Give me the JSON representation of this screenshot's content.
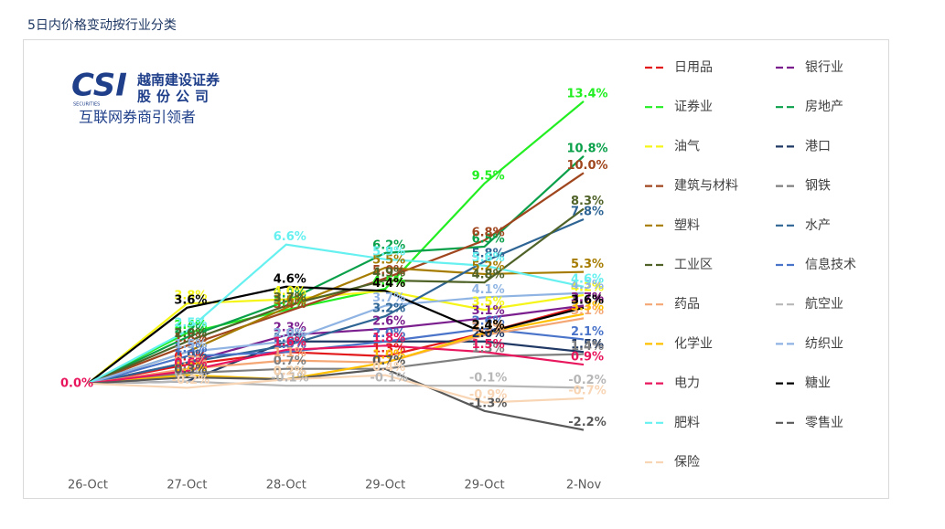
{
  "chart_data": {
    "type": "line",
    "title": "5日内价格变动按行业分类",
    "logo": {
      "mark": "CSI",
      "sub": "SECURITIES",
      "name1": "越南建设证券",
      "name2": "股份公司",
      "slogan": "互联网券商引领者"
    },
    "categories": [
      "26-Oct",
      "27-Oct",
      "28-Oct",
      "29-Oct",
      "29-Oct",
      "2-Nov"
    ],
    "ylim": [
      -3,
      15
    ],
    "series": [
      {
        "name": "日用品",
        "color": "#e31a1c",
        "values": [
          0,
          0.9,
          1.5,
          1.3,
          2.4,
          3.7
        ],
        "value_labels": [
          null,
          "0.9%",
          "1.5%",
          "1.3%",
          "2.4%",
          "3.7%"
        ]
      },
      {
        "name": "银行业",
        "color": "#7b1f8e",
        "values": [
          0,
          1.0,
          2.3,
          2.6,
          3.1,
          3.7
        ],
        "value_labels": [
          null,
          "1.0%",
          "2.3%",
          "2.6%",
          "3.1%",
          "3.7%"
        ]
      },
      {
        "name": "证券业",
        "color": "#22ee22",
        "values": [
          0,
          2.4,
          3.5,
          4.5,
          9.5,
          13.4
        ],
        "value_labels": [
          null,
          "2.4%",
          "3.5%",
          "4.5%",
          "9.5%",
          "13.4%"
        ]
      },
      {
        "name": "房地产",
        "color": "#0aa04a",
        "values": [
          0,
          2.2,
          3.9,
          6.2,
          6.5,
          10.8
        ],
        "value_labels": [
          null,
          "2.2%",
          "3.9%",
          "6.2%",
          "6.5%",
          "10.8%"
        ]
      },
      {
        "name": "油气",
        "color": "#f5f51a",
        "values": [
          0,
          3.8,
          4.0,
          4.4,
          3.5,
          4.2
        ],
        "value_labels": [
          null,
          "3.8%",
          "4.0%",
          "4.4%",
          "3.5%",
          "4.2%"
        ]
      },
      {
        "name": "港口",
        "color": "#1f3864",
        "values": [
          0,
          0.1,
          2.0,
          2.0,
          2.0,
          1.5
        ],
        "value_labels": [
          null,
          "0.1%",
          "2.0%",
          "2.0%",
          "2.0%",
          "1.5%"
        ]
      },
      {
        "name": "建筑与材料",
        "color": "#a0461e",
        "values": [
          0,
          1.8,
          3.4,
          5.0,
          6.8,
          10.0
        ],
        "value_labels": [
          null,
          "1.8%",
          "3.4%",
          "5.0%",
          "6.8%",
          "10.0%"
        ]
      },
      {
        "name": "钢铁",
        "color": "#7f7f7f",
        "values": [
          0,
          0.5,
          0.7,
          0.7,
          1.3,
          1.4
        ],
        "value_labels": [
          null,
          "0.5%",
          "0.7%",
          "0.7%",
          "1.3%",
          "1.4%"
        ]
      },
      {
        "name": "塑料",
        "color": "#a67c00",
        "values": [
          0,
          1.5,
          3.6,
          5.5,
          5.2,
          5.3
        ],
        "value_labels": [
          null,
          "1.5%",
          "3.6%",
          "5.5%",
          "5.2%",
          "5.3%"
        ]
      },
      {
        "name": "水产",
        "color": "#2e6594",
        "values": [
          0,
          1.0,
          1.8,
          3.2,
          5.8,
          7.8
        ],
        "value_labels": [
          null,
          "1.0%",
          "1.8%",
          "3.2%",
          "5.8%",
          "7.8%"
        ]
      },
      {
        "name": "工业区",
        "color": "#4f6228",
        "values": [
          0,
          2.0,
          3.7,
          4.9,
          4.8,
          8.3
        ],
        "value_labels": [
          null,
          "2.0%",
          "3.7%",
          "4.9%",
          "4.8%",
          "8.3%"
        ]
      },
      {
        "name": "信息技术",
        "color": "#4a74c9",
        "values": [
          0,
          1.3,
          1.5,
          2.0,
          2.6,
          2.1
        ],
        "value_labels": [
          null,
          "1.3%",
          "1.5%",
          "2.0%",
          "2.6%",
          "2.1%"
        ]
      },
      {
        "name": "药品",
        "color": "#f4a774",
        "values": [
          0,
          0.7,
          1.1,
          1.0,
          2.3,
          3.1
        ],
        "value_labels": [
          null,
          "0.7%",
          "1.1%",
          "1.0%",
          "2.3%",
          "3.1%"
        ]
      },
      {
        "name": "航空业",
        "color": "#b7b7b7",
        "values": [
          0,
          0.1,
          -0.1,
          -0.1,
          -0.1,
          -0.2
        ],
        "value_labels": [
          null,
          "0.1%",
          "-0.1%",
          "-0.1%",
          "-0.1%",
          "-0.2%"
        ]
      },
      {
        "name": "化学业",
        "color": "#ffc000",
        "values": [
          0,
          0.4,
          0.2,
          1.0,
          2.4,
          3.3
        ],
        "value_labels": [
          null,
          "0.4%",
          "0.2%",
          "1.0%",
          "2.4%",
          "3.3%"
        ]
      },
      {
        "name": "纺织业",
        "color": "#8fb4e3",
        "values": [
          0,
          1.5,
          2.0,
          3.7,
          4.1,
          4.3
        ],
        "value_labels": [
          null,
          "1.5%",
          "2.0%",
          "3.7%",
          "4.1%",
          "4.3%"
        ]
      },
      {
        "name": "电力",
        "color": "#e8175d",
        "values": [
          0,
          0.6,
          1.6,
          1.8,
          1.5,
          0.9
        ],
        "value_labels": [
          "0.0%",
          "0.6%",
          "1.6%",
          "1.8%",
          "1.5%",
          "0.9%"
        ]
      },
      {
        "name": "糖业",
        "color": "#000000",
        "values": [
          0,
          3.6,
          4.6,
          4.4,
          2.4,
          3.6
        ],
        "value_labels": [
          null,
          "3.6%",
          "4.6%",
          "4.4%",
          "2.4%",
          "3.6%"
        ]
      },
      {
        "name": "肥料",
        "color": "#66f0f0",
        "values": [
          0,
          2.5,
          6.6,
          5.9,
          5.6,
          4.6
        ],
        "value_labels": [
          null,
          "2.5%",
          "6.6%",
          "5.9%",
          "5.6%",
          "4.6%"
        ]
      },
      {
        "name": "零售业",
        "color": "#595959",
        "values": [
          0,
          0.3,
          0.2,
          0.7,
          -1.3,
          -2.2
        ],
        "value_labels": [
          null,
          "0.3%",
          "0.2%",
          "0.7%",
          "-1.3%",
          "-2.2%"
        ]
      },
      {
        "name": "保险",
        "color": "#f8d5b4",
        "values": [
          0,
          -0.2,
          0.2,
          0.4,
          -0.9,
          -0.7
        ],
        "value_labels": [
          null,
          "-0.2%",
          "0.2%",
          "0.4%",
          "-0.9%",
          "-0.7%"
        ]
      }
    ]
  }
}
